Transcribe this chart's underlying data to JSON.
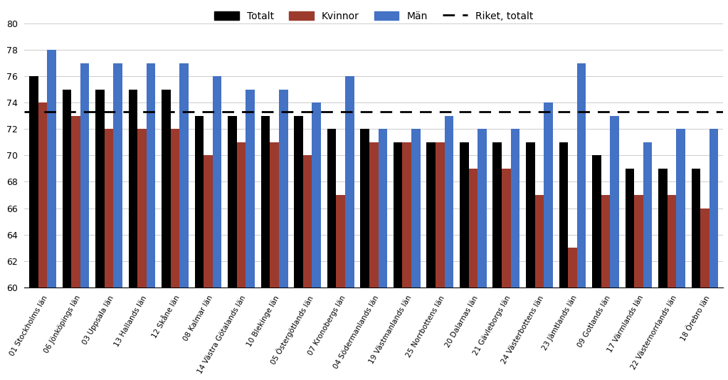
{
  "categories": [
    "01 Stockholms län",
    "06 Jönköpings län",
    "03 Uppsala län",
    "13 Hallands län",
    "12 Skåne län",
    "08 Kalmar län",
    "14 Västra Götalands län",
    "10 Blekinge län",
    "05 Östergötlands län",
    "07 Kronobergs län",
    "04 Södermanlands län",
    "19 Västmanlands län",
    "25 Norrbottens län",
    "20 Dalarnas län",
    "21 Gävleborgs län",
    "24 Västerbottens län",
    "23 Jämtlands län",
    "09 Gotlands län",
    "17 Värmlands län",
    "22 Västernorrlands län",
    "18 Örebro län"
  ],
  "totalt": [
    76,
    75,
    75,
    75,
    75,
    73,
    73,
    73,
    73,
    72,
    72,
    71,
    71,
    71,
    71,
    71,
    71,
    70,
    69,
    69,
    69
  ],
  "kvinnor": [
    74,
    73,
    72,
    72,
    72,
    70,
    71,
    71,
    70,
    67,
    71,
    71,
    71,
    69,
    69,
    67,
    63,
    67,
    67,
    67,
    66
  ],
  "man": [
    78,
    77,
    77,
    77,
    77,
    76,
    75,
    75,
    74,
    76,
    72,
    72,
    73,
    72,
    72,
    74,
    77,
    73,
    71,
    72,
    72
  ],
  "riket_totalt": 73.3,
  "color_totalt": "#000000",
  "color_kvinnor": "#9c3a2e",
  "color_man": "#4472c4",
  "color_riket": "#000000",
  "ylim": [
    60,
    80
  ],
  "yticks": [
    60,
    62,
    64,
    66,
    68,
    70,
    72,
    74,
    76,
    78,
    80
  ],
  "background_color": "#ffffff",
  "legend_labels": [
    "Totalt",
    "Kvinnor",
    "Män",
    "Riket, totalt"
  ],
  "bar_bottom": 60
}
